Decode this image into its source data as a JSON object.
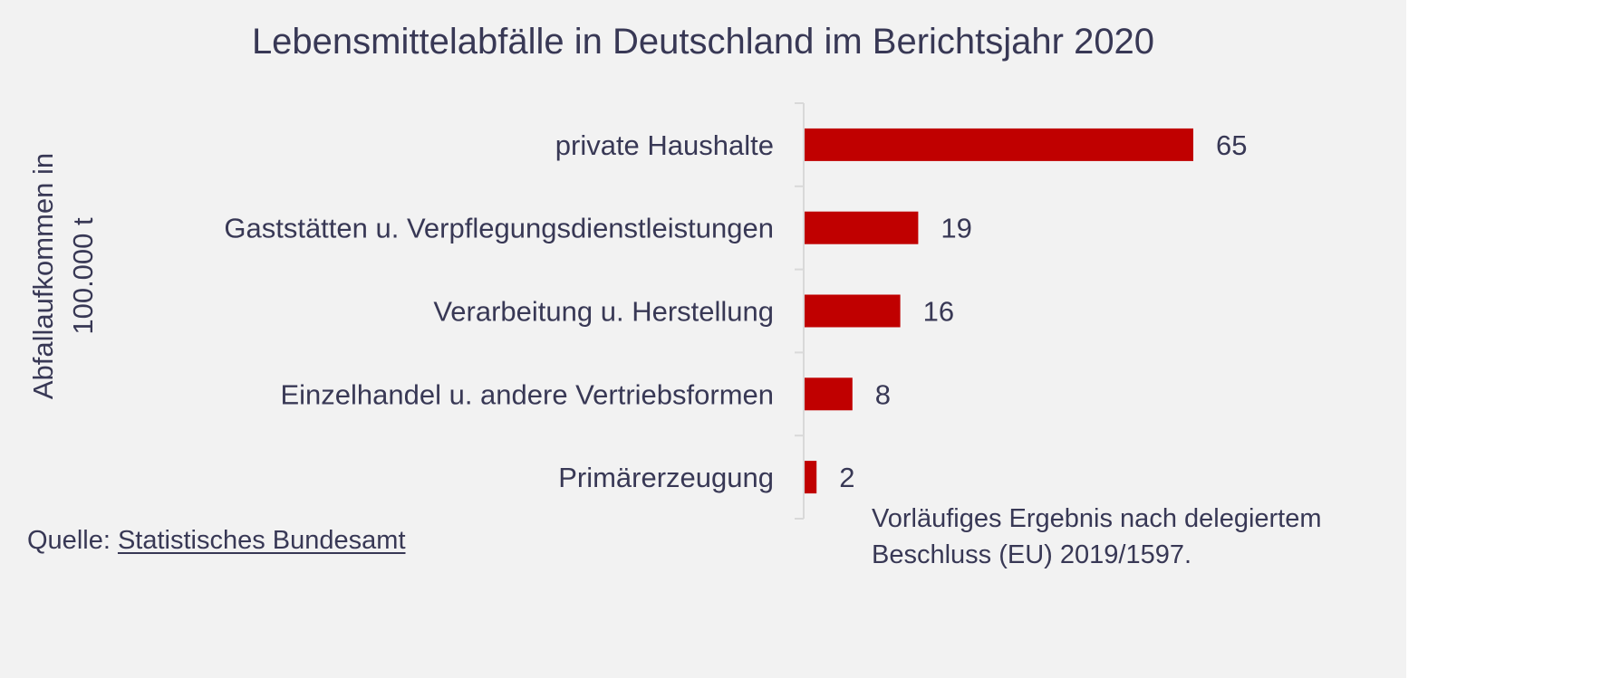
{
  "chart_data": {
    "type": "bar",
    "orientation": "horizontal",
    "title": "Lebensmittelabfälle in Deutschland im Berichtsjahr 2020",
    "ylabel_lines": [
      "Abfallaufkommen in",
      "100.000 t"
    ],
    "categories": [
      "private Haushalte",
      "Gaststätten u. Verpflegungsdienstleistungen",
      "Verarbeitung u. Herstellung",
      "Einzelhandel u. andere Vertriebsformen",
      "Primärerzeugung"
    ],
    "values": [
      65,
      19,
      16,
      8,
      2
    ],
    "xlim": [
      0,
      70
    ],
    "grid": false,
    "legend": "none",
    "bar_color": "#c00000",
    "data_labels": true
  },
  "source": {
    "prefix": "Quelle: ",
    "link_text": "Statistisches Bundesamt"
  },
  "note": {
    "lines": [
      "Vorläufiges Ergebnis nach delegiertem",
      "Beschluss (EU) 2019/1597."
    ]
  },
  "colors": {
    "text": "#383855",
    "background": "#f2f2f2",
    "bar": "#c00000",
    "axis": "#d9d9d9"
  }
}
